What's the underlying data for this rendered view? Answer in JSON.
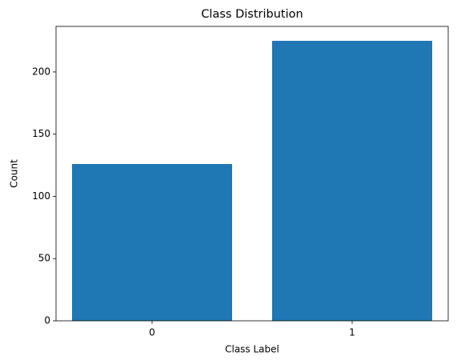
{
  "chart_data": {
    "type": "bar",
    "title": "Class Distribution",
    "x_label": "Class Label",
    "y_label": "Count",
    "categories": [
      "0",
      "1"
    ],
    "values": [
      126,
      225
    ],
    "color": "#1f77b4",
    "ylim": [
      0,
      236.6
    ],
    "yticks": [
      0,
      50,
      100,
      150,
      200
    ],
    "grid": false
  }
}
